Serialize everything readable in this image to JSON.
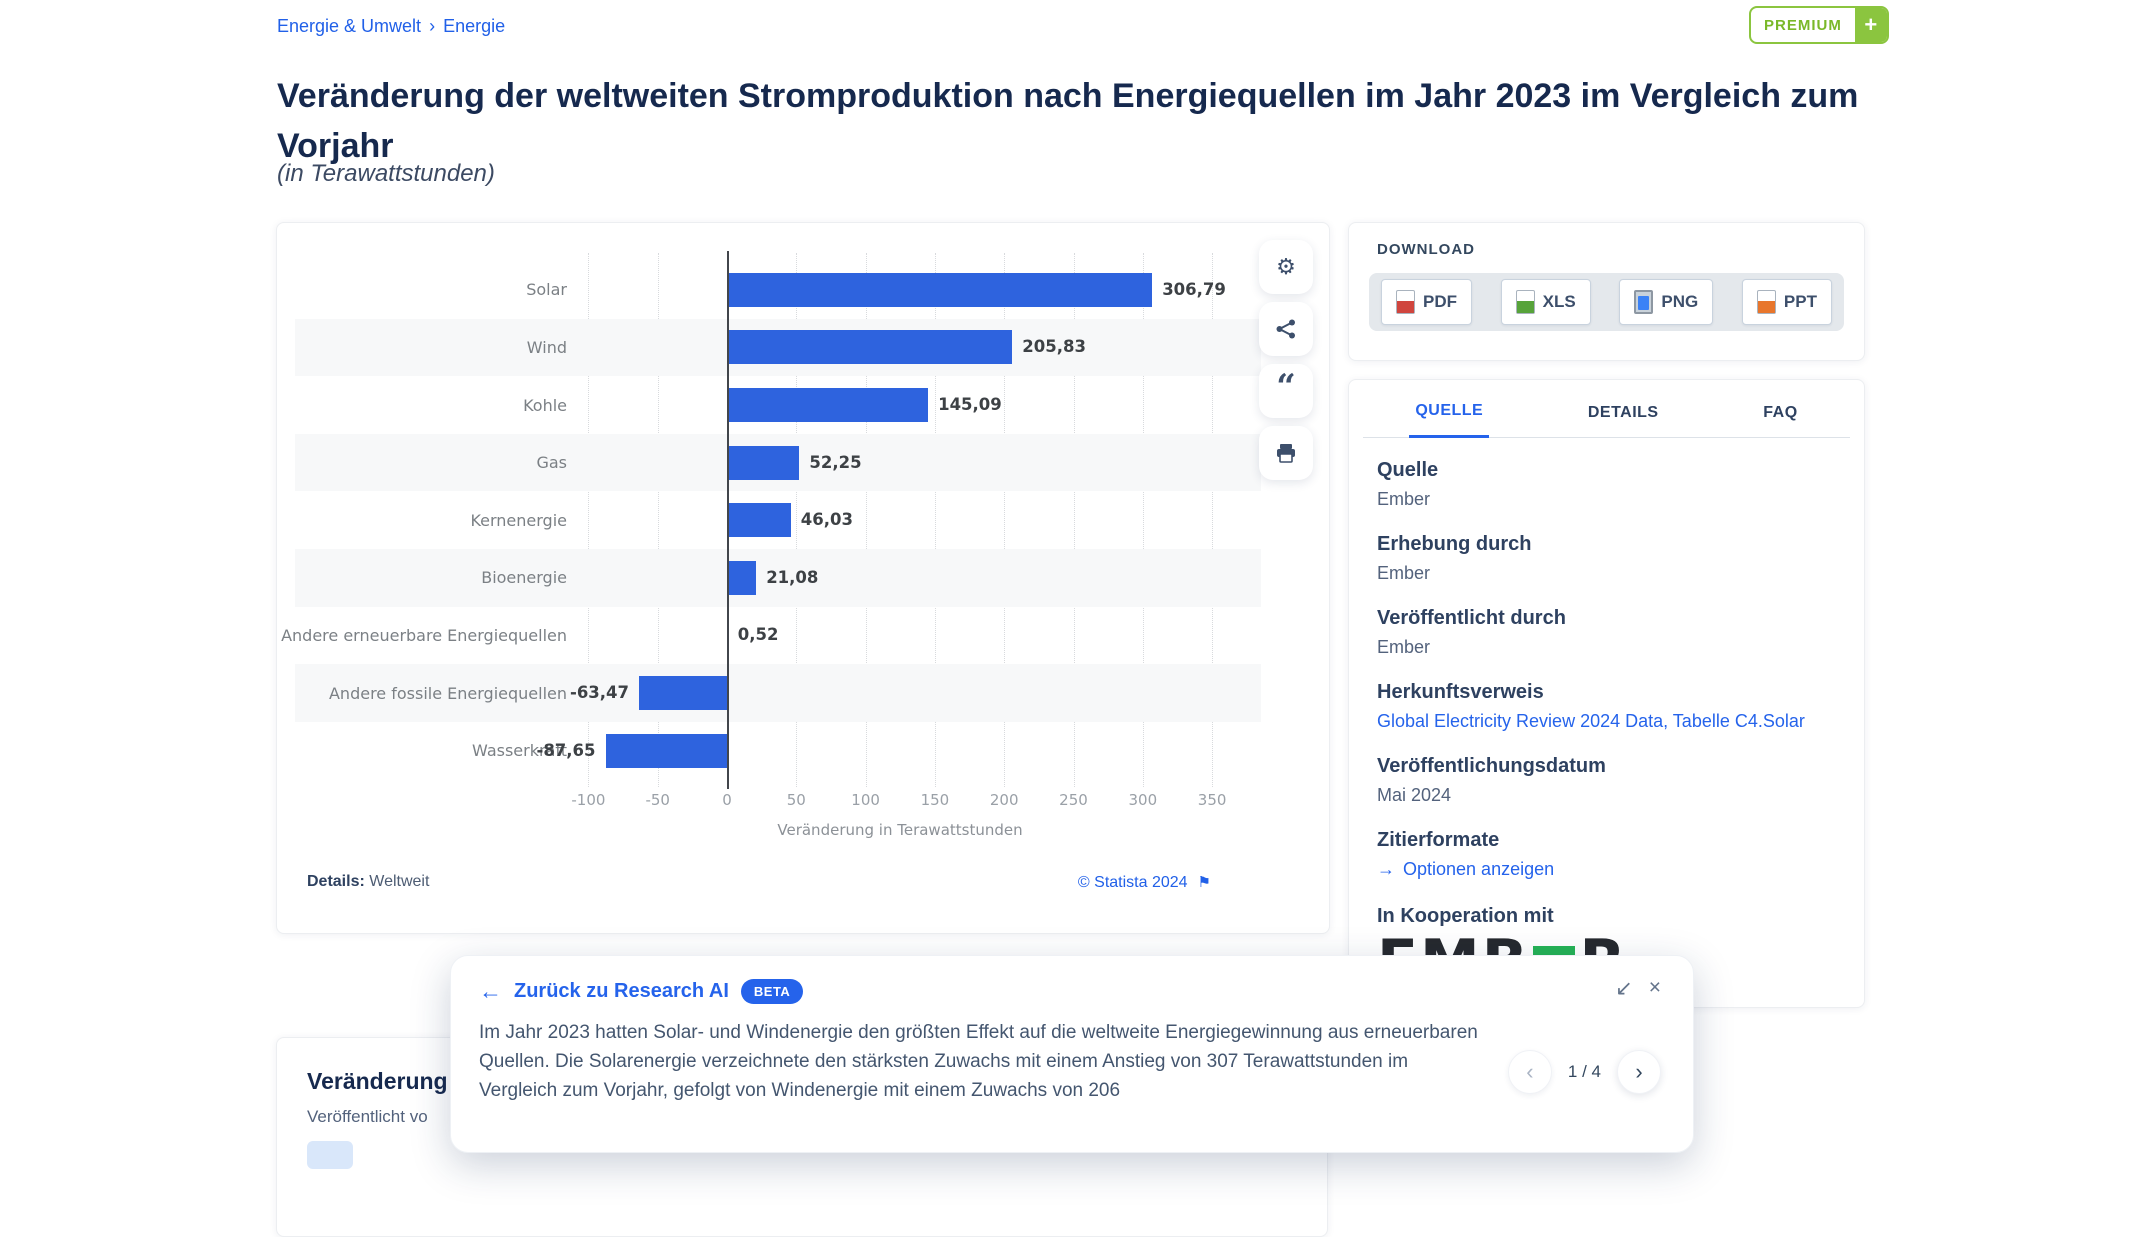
{
  "breadcrumb": {
    "items": [
      "Energie & Umwelt",
      "Energie"
    ],
    "separator": "›"
  },
  "premium_badge": {
    "label": "PREMIUM",
    "plus": "+"
  },
  "page": {
    "title": "Veränderung der weltweiten Stromproduktion nach Energiequellen im Jahr 2023 im Vergleich zum Vorjahr",
    "subtitle": "(in Terawattstunden)"
  },
  "chart_data": {
    "type": "bar",
    "orientation": "horizontal",
    "title": "Veränderung der weltweiten Stromproduktion nach Energiequellen im Jahr 2023 im Vergleich zum Vorjahr",
    "unit": "Terawattstunden",
    "categories": [
      "Solar",
      "Wind",
      "Kohle",
      "Gas",
      "Kernenergie",
      "Bioenergie",
      "Andere erneuerbare Energiequellen",
      "Andere fossile Energiequellen",
      "Wasserkraft"
    ],
    "values": [
      306.79,
      205.83,
      145.09,
      52.25,
      46.03,
      21.08,
      0.52,
      -63.47,
      -87.65
    ],
    "value_labels": [
      "306,79",
      "205,83",
      "145,09",
      "52,25",
      "46,03",
      "21,08",
      "0,52",
      "-63,47",
      "-87,65"
    ],
    "xlabel": "Veränderung in Terawattstunden",
    "xlim": [
      -100,
      350
    ],
    "ticks": [
      -100,
      -50,
      0,
      50,
      100,
      150,
      200,
      250,
      300,
      350
    ],
    "tick_labels": [
      "-100",
      "-50",
      "0",
      "50",
      "100",
      "150",
      "200",
      "250",
      "300",
      "350"
    ],
    "bar_color": "#2e63de",
    "zebra_rows": true,
    "grid": "dotted-vertical"
  },
  "chart_card": {
    "details_label": "Details:",
    "details_value": "Weltweit",
    "copyright": "© Statista 2024",
    "flag_icon": "⚑"
  },
  "chart_toolbar": {
    "buttons": [
      {
        "name": "settings",
        "glyph": "⚙"
      },
      {
        "name": "share",
        "glyph": "share-nodes"
      },
      {
        "name": "cite",
        "glyph": "“"
      },
      {
        "name": "print",
        "glyph": "printer"
      }
    ]
  },
  "download": {
    "title": "DOWNLOAD",
    "buttons": [
      {
        "label": "PDF",
        "icon": "pdf-file-icon",
        "color": "#d0453e"
      },
      {
        "label": "XLS",
        "icon": "xls-file-icon",
        "color": "#57a33a"
      },
      {
        "label": "PNG",
        "icon": "png-image-icon",
        "color": "#3b82f6"
      },
      {
        "label": "PPT",
        "icon": "ppt-file-icon",
        "color": "#e8762c"
      }
    ]
  },
  "source_panel": {
    "tabs": [
      {
        "label": "QUELLE",
        "active": true
      },
      {
        "label": "DETAILS",
        "active": false
      },
      {
        "label": "FAQ",
        "active": false
      }
    ],
    "sections": [
      {
        "heading": "Quelle",
        "value": "Ember",
        "type": "text"
      },
      {
        "heading": "Erhebung durch",
        "value": "Ember",
        "type": "text"
      },
      {
        "heading": "Veröffentlicht durch",
        "value": "Ember",
        "type": "text"
      },
      {
        "heading": "Herkunftsverweis",
        "value": "Global Electricity Review 2024 Data, Tabelle C4.Solar",
        "type": "link"
      },
      {
        "heading": "Veröffentlichungsdatum",
        "value": "Mai 2024",
        "type": "text"
      },
      {
        "heading": "Zitierformate",
        "value": "Optionen anzeigen",
        "type": "link-arrow",
        "arrow": "→"
      }
    ],
    "cooperation": {
      "label": "In Kooperation mit",
      "logo_left": "EMB",
      "logo_right": "R",
      "logo_green": "#25b356"
    }
  },
  "research_popup": {
    "back_arrow": "←",
    "back_label": "Zurück zu Research AI",
    "beta_label": "BETA",
    "minimize_icon": "↙",
    "close_icon": "×",
    "text": "Im Jahr 2023 hatten Solar- und Windenergie den größten Effekt auf die weltweite Energiegewinnung aus erneuerbaren Quellen. Die Solarenergie verzeichnete den stärksten Zuwachs mit einem Anstieg von 307 Terawattstunden im Vergleich zum Vorjahr, gefolgt von Windenergie mit einem Zuwachs von 206",
    "pagination": {
      "prev": "‹",
      "count": "1 / 4",
      "next": "›"
    }
  },
  "next_card": {
    "title_visible": "Veränderung d",
    "subtitle_visible": "Veröffentlicht vo"
  },
  "colors": {
    "accent_blue": "#2563eb",
    "link_blue": "#2160e8",
    "bar_blue": "#2e63de",
    "title_navy": "#16294e",
    "premium_green": "#8bc53f",
    "ember_green": "#25b356"
  }
}
